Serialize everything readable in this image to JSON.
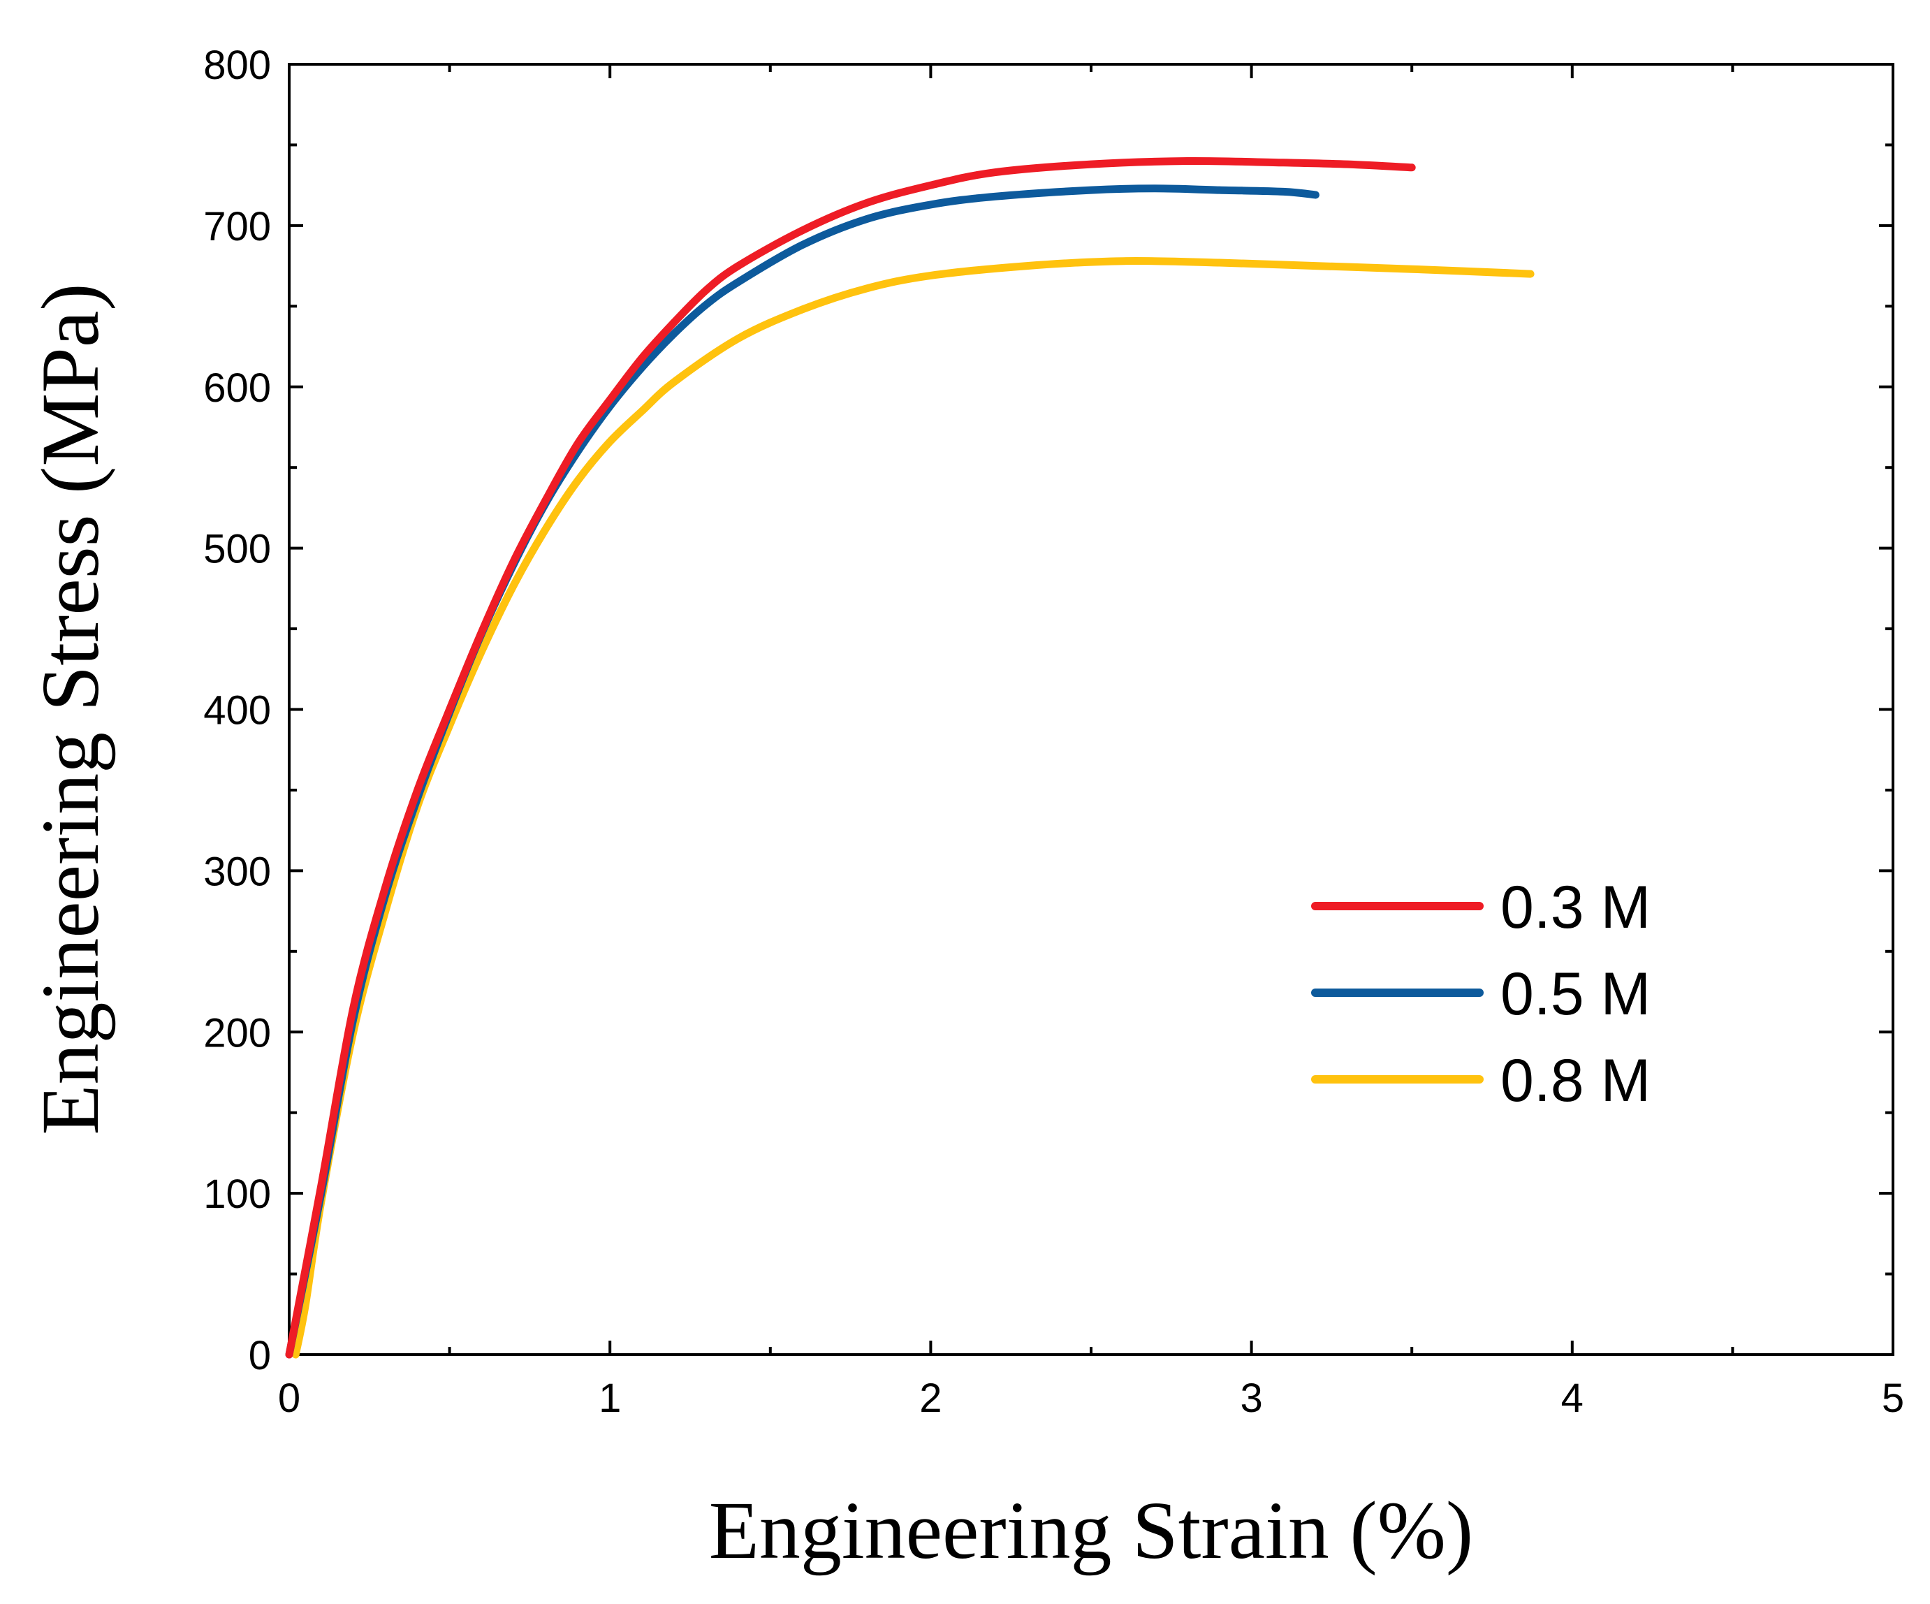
{
  "chart_data": {
    "type": "line",
    "title": "",
    "xlabel": "Engineering Strain (%)",
    "ylabel": "Engineering Stress (MPa)",
    "xlim": [
      0,
      5
    ],
    "ylim": [
      0,
      800
    ],
    "x_ticks": [
      0,
      1,
      2,
      3,
      4,
      5
    ],
    "y_ticks": [
      0,
      100,
      200,
      300,
      400,
      500,
      600,
      700,
      800
    ],
    "legend_position": "right",
    "grid": false,
    "series": [
      {
        "name": "0.3 M",
        "color": "#ee1c25",
        "points": [
          [
            0,
            0
          ],
          [
            0.1,
            105
          ],
          [
            0.2,
            215
          ],
          [
            0.3,
            290
          ],
          [
            0.4,
            350
          ],
          [
            0.5,
            400
          ],
          [
            0.6,
            448
          ],
          [
            0.7,
            492
          ],
          [
            0.8,
            530
          ],
          [
            0.9,
            565
          ],
          [
            1.0,
            592
          ],
          [
            1.1,
            618
          ],
          [
            1.2,
            640
          ],
          [
            1.3,
            660
          ],
          [
            1.4,
            675
          ],
          [
            1.6,
            697
          ],
          [
            1.8,
            714
          ],
          [
            2.0,
            725
          ],
          [
            2.2,
            733
          ],
          [
            2.5,
            738
          ],
          [
            2.8,
            740
          ],
          [
            3.1,
            739
          ],
          [
            3.3,
            738
          ],
          [
            3.5,
            736
          ]
        ]
      },
      {
        "name": "0.5 M",
        "color": "#0d5a9c",
        "points": [
          [
            0,
            0
          ],
          [
            0.1,
            100
          ],
          [
            0.2,
            208
          ],
          [
            0.3,
            285
          ],
          [
            0.4,
            345
          ],
          [
            0.5,
            398
          ],
          [
            0.6,
            447
          ],
          [
            0.7,
            490
          ],
          [
            0.8,
            528
          ],
          [
            0.9,
            560
          ],
          [
            1.0,
            588
          ],
          [
            1.1,
            612
          ],
          [
            1.2,
            633
          ],
          [
            1.3,
            651
          ],
          [
            1.4,
            665
          ],
          [
            1.6,
            688
          ],
          [
            1.8,
            704
          ],
          [
            2.0,
            713
          ],
          [
            2.2,
            718
          ],
          [
            2.5,
            722
          ],
          [
            2.7,
            723
          ],
          [
            2.9,
            722
          ],
          [
            3.1,
            721
          ],
          [
            3.2,
            719
          ]
        ]
      },
      {
        "name": "0.8 M",
        "color": "#ffc20e",
        "points": [
          [
            0.02,
            0
          ],
          [
            0.05,
            30
          ],
          [
            0.1,
            95
          ],
          [
            0.2,
            200
          ],
          [
            0.3,
            275
          ],
          [
            0.4,
            340
          ],
          [
            0.5,
            390
          ],
          [
            0.6,
            436
          ],
          [
            0.7,
            477
          ],
          [
            0.8,
            512
          ],
          [
            0.9,
            542
          ],
          [
            1.0,
            566
          ],
          [
            1.1,
            585
          ],
          [
            1.2,
            603
          ],
          [
            1.4,
            630
          ],
          [
            1.6,
            648
          ],
          [
            1.8,
            661
          ],
          [
            2.0,
            669
          ],
          [
            2.3,
            675
          ],
          [
            2.6,
            678
          ],
          [
            2.9,
            677
          ],
          [
            3.2,
            675
          ],
          [
            3.5,
            673
          ],
          [
            3.87,
            670
          ]
        ]
      }
    ]
  }
}
